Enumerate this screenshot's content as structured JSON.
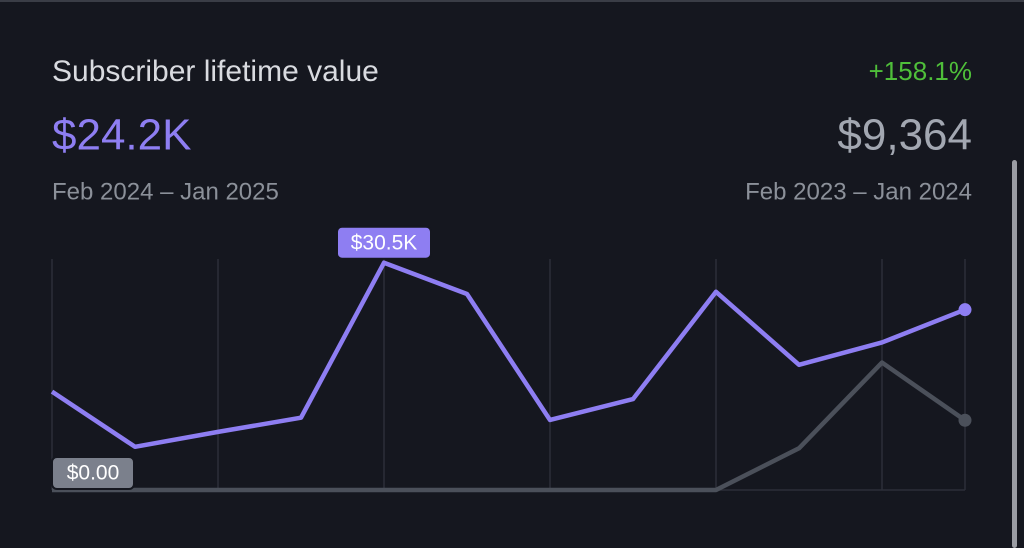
{
  "chart_data": {
    "type": "line",
    "title": "Subscriber lifetime value",
    "change": "+158.1%",
    "current_total": "$24.2K",
    "previous_total": "$9,364",
    "current_period": "Feb 2024 – Jan 2025",
    "previous_period": "Feb 2023 – Jan 2024",
    "ylim": [
      0,
      31000
    ],
    "series": [
      {
        "name": "Feb 2024 – Jan 2025",
        "color": "#8e7ef2",
        "values": [
          13200,
          5800,
          7800,
          9700,
          30500,
          26300,
          9400,
          12200,
          26600,
          16800,
          19800,
          24200
        ],
        "value_labels": [
          null,
          null,
          null,
          null,
          "$30.5K",
          null,
          null,
          null,
          null,
          null,
          null,
          null
        ]
      },
      {
        "name": "Feb 2023 – Jan 2024",
        "color": "#4b505a",
        "values": [
          0,
          0,
          0,
          0,
          0,
          0,
          0,
          0,
          0,
          5600,
          17100,
          9364
        ],
        "value_labels": [
          "$0.00",
          null,
          null,
          null,
          null,
          null,
          null,
          null,
          null,
          null,
          null,
          null
        ]
      }
    ]
  }
}
